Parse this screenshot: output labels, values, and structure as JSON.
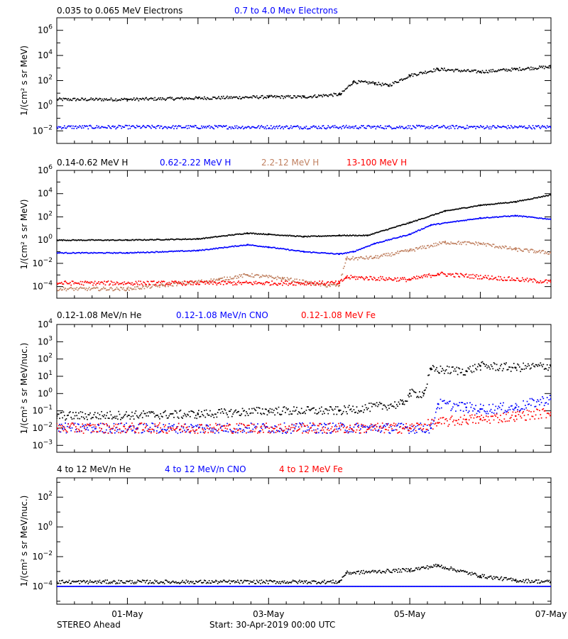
{
  "footer": {
    "left": "STEREO Ahead",
    "start": "Start: 30-Apr-2019 00:00 UTC"
  },
  "x_axis": {
    "range_days": [
      0,
      7
    ],
    "ticks": [
      {
        "day": 1,
        "label": "01-May"
      },
      {
        "day": 3,
        "label": "03-May"
      },
      {
        "day": 5,
        "label": "05-May"
      },
      {
        "day": 7,
        "label": "07-May"
      }
    ]
  },
  "chart_data": [
    {
      "type": "scatter",
      "ylabel": "1/(cm² s sr MeV)",
      "log_y": true,
      "ylim_exp": [
        -3,
        7
      ],
      "y_tick_exps": [
        -2,
        0,
        2,
        4,
        6
      ],
      "series": [
        {
          "name": "0.035 to 0.065 MeV Electrons",
          "color": "#000000",
          "noise": 0.12,
          "x": [
            0,
            1,
            2,
            3,
            3.5,
            4.0,
            4.02,
            4.2,
            4.5,
            4.7,
            5.0,
            5.4,
            6.0,
            6.5,
            7.0
          ],
          "y": [
            0.5,
            0.5,
            0.6,
            0.7,
            0.7,
            0.9,
            0.9,
            1.9,
            1.8,
            1.6,
            2.4,
            2.9,
            2.7,
            2.9,
            3.1
          ]
        },
        {
          "name": "0.7 to 4.0 Mev Electrons",
          "color": "#0000ff",
          "noise": 0.14,
          "x": [
            0,
            7
          ],
          "y": [
            -1.7,
            -1.7
          ]
        }
      ]
    },
    {
      "type": "scatter",
      "ylabel": "1/(cm² s sr MeV)",
      "log_y": true,
      "ylim_exp": [
        -5,
        6
      ],
      "y_tick_exps": [
        -4,
        -2,
        0,
        2,
        4,
        6
      ],
      "series": [
        {
          "name": "0.14-0.62 MeV H",
          "color": "#000000",
          "noise": 0.04,
          "x": [
            0,
            1,
            2,
            2.7,
            3.0,
            3.5,
            4.0,
            4.4,
            5.0,
            5.5,
            6.0,
            6.5,
            7.0
          ],
          "y": [
            0,
            0,
            0.1,
            0.6,
            0.5,
            0.3,
            0.4,
            0.4,
            1.5,
            2.5,
            3.0,
            3.3,
            3.9
          ]
        },
        {
          "name": "0.62-2.22 MeV H",
          "color": "#0000ff",
          "noise": 0.04,
          "x": [
            0,
            1,
            2,
            2.7,
            3.0,
            3.5,
            4.0,
            4.2,
            4.5,
            5.0,
            5.3,
            6.0,
            6.5,
            7.0
          ],
          "y": [
            -1.1,
            -1.1,
            -0.9,
            -0.4,
            -0.6,
            -1.0,
            -1.2,
            -1.0,
            -0.3,
            0.5,
            1.3,
            1.9,
            2.1,
            1.8
          ]
        },
        {
          "name": "2.2-12 MeV H",
          "color": "#c08060",
          "noise": 0.15,
          "x": [
            0,
            1,
            1.5,
            2.3,
            2.7,
            3.2,
            3.8,
            4.0,
            4.1,
            4.5,
            5.0,
            5.5,
            6.0,
            6.5,
            7.0
          ],
          "y": [
            -4.2,
            -4.2,
            -3.9,
            -3.4,
            -3.0,
            -3.3,
            -3.9,
            -3.9,
            -1.6,
            -1.5,
            -0.9,
            -0.2,
            -0.3,
            -0.8,
            -1.1
          ]
        },
        {
          "name": "13-100 MeV H",
          "color": "#ff0000",
          "noise": 0.18,
          "x": [
            0,
            4.0,
            4.1,
            5.0,
            5.4,
            7.0
          ],
          "y": [
            -3.7,
            -3.7,
            -3.2,
            -3.4,
            -2.9,
            -3.6
          ]
        }
      ]
    },
    {
      "type": "scatter",
      "ylabel": "1/(cm² s sr MeV/nuc.)",
      "log_y": true,
      "ylim_exp": [
        -3.4,
        4
      ],
      "y_tick_exps": [
        -3,
        -2,
        -1,
        0,
        1,
        2,
        3,
        4
      ],
      "series": [
        {
          "name": "0.12-1.08 MeV/n He",
          "color": "#000000",
          "noise": 0.25,
          "x": [
            0,
            2.0,
            3.0,
            4.0,
            4.9,
            5.0,
            5.2,
            5.3,
            5.8,
            6.0,
            6.5,
            7.0
          ],
          "y": [
            -1.3,
            -1.2,
            -1.0,
            -1.0,
            -0.6,
            0.0,
            0.0,
            1.4,
            1.3,
            1.6,
            1.5,
            1.6
          ]
        },
        {
          "name": "0.12-1.08 MeV/n CNO",
          "color": "#0000ff",
          "noise": 0.3,
          "x": [
            0,
            5.0,
            5.3,
            5.4,
            5.8,
            6.0,
            6.5,
            7.0
          ],
          "y": [
            -2.0,
            -2.0,
            -2.0,
            -0.6,
            -0.8,
            -0.9,
            -0.8,
            -0.3
          ]
        },
        {
          "name": "0.12-1.08 MeV Fe",
          "color": "#ff0000",
          "noise": 0.3,
          "x": [
            0,
            5.0,
            5.4,
            5.8,
            6.0,
            6.5,
            7.0
          ],
          "y": [
            -2.0,
            -2.0,
            -1.7,
            -1.5,
            -1.5,
            -1.3,
            -1.1
          ]
        }
      ]
    },
    {
      "type": "scatter",
      "ylabel": "1/(cm² s sr MeV/nuc.)",
      "log_y": true,
      "ylim_exp": [
        -5.2,
        3.3
      ],
      "y_tick_exps": [
        -4,
        -2,
        0,
        2
      ],
      "series": [
        {
          "name": "4 to 12 MeV/n He",
          "color": "#000000",
          "noise": 0.12,
          "x": [
            0,
            4.0,
            4.1,
            5.0,
            5.4,
            6.0,
            6.5,
            7.0
          ],
          "y": [
            -3.7,
            -3.7,
            -3.1,
            -2.9,
            -2.6,
            -3.3,
            -3.6,
            -3.7
          ]
        },
        {
          "name": "4 to 12 MeV/n CNO",
          "color": "#0000ff",
          "noise": 0.0,
          "x": [
            0,
            7
          ],
          "y": [
            -4.0,
            -4.0
          ]
        },
        {
          "name": "4 to 12 MeV Fe",
          "color": "#ff0000",
          "noise": 0.0,
          "x": [
            0,
            7
          ],
          "y": [
            -7,
            -7
          ]
        }
      ]
    }
  ]
}
